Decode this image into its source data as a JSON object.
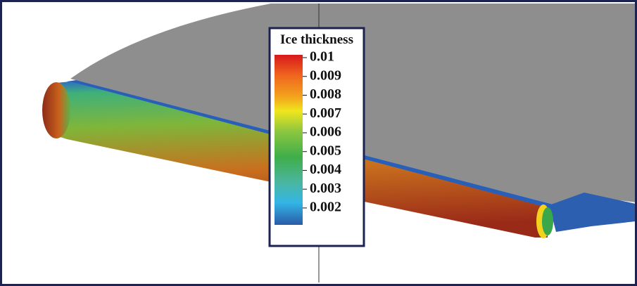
{
  "colorbar": {
    "title": "Ice thickness",
    "lim": [
      0.0011,
      0.01015
    ],
    "ticks": [
      0.01,
      0.009,
      0.008,
      0.007,
      0.006,
      0.005,
      0.004,
      0.003,
      0.002
    ]
  }
}
